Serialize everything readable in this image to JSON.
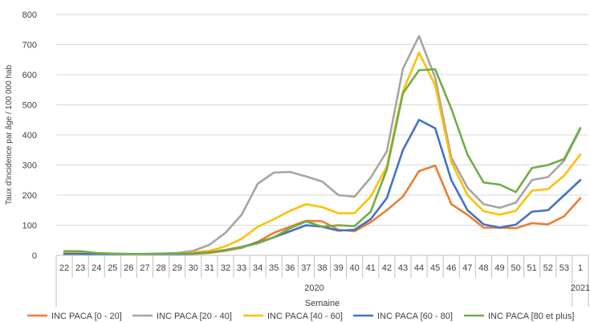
{
  "chart_data": {
    "type": "line",
    "xlabel": "Semaine",
    "ylabel": "Taux d'incidence  par âge / 100 000 hab",
    "ylim": [
      0,
      800
    ],
    "yticks": [
      "0",
      "100",
      "200",
      "300",
      "400",
      "500",
      "600",
      "700",
      "800"
    ],
    "grid": "horizontal",
    "legend_position": "bottom",
    "categories": [
      "22",
      "23",
      "24",
      "25",
      "26",
      "27",
      "28",
      "29",
      "30",
      "31",
      "32",
      "33",
      "34",
      "35",
      "36",
      "37",
      "38",
      "39",
      "40",
      "41",
      "42",
      "43",
      "44",
      "45",
      "46",
      "47",
      "48",
      "49",
      "50",
      "51",
      "52",
      "53",
      "1"
    ],
    "year_groups": [
      {
        "label": "2020",
        "from": 0,
        "to": 31
      },
      {
        "label": "2021",
        "from": 32,
        "to": 32
      }
    ],
    "series": [
      {
        "name": "INC PACA [0 - 20]",
        "color": "#ED7D31",
        "values": [
          5,
          5,
          4,
          3,
          3,
          3,
          4,
          4,
          5,
          8,
          15,
          25,
          45,
          75,
          95,
          115,
          113,
          85,
          80,
          110,
          150,
          195,
          280,
          298,
          170,
          135,
          92,
          92,
          90,
          107,
          103,
          130,
          190
        ]
      },
      {
        "name": "INC PACA [20 - 40]",
        "color": "#A5A5A5",
        "values": [
          8,
          8,
          6,
          4,
          4,
          4,
          6,
          8,
          15,
          35,
          75,
          135,
          238,
          275,
          277,
          262,
          245,
          200,
          195,
          258,
          345,
          620,
          728,
          590,
          325,
          225,
          170,
          158,
          175,
          250,
          260,
          315,
          420
        ]
      },
      {
        "name": "INC PACA [40 - 60]",
        "color": "#FFC000",
        "values": [
          7,
          7,
          5,
          4,
          3,
          4,
          6,
          5,
          10,
          15,
          30,
          55,
          95,
          120,
          148,
          170,
          160,
          140,
          140,
          195,
          295,
          545,
          673,
          565,
          310,
          200,
          147,
          135,
          148,
          215,
          220,
          265,
          335
        ]
      },
      {
        "name": "INC PACA [60 - 80]",
        "color": "#4472C4",
        "values": [
          5,
          5,
          4,
          3,
          3,
          3,
          4,
          4,
          6,
          10,
          18,
          28,
          42,
          60,
          80,
          100,
          95,
          82,
          85,
          120,
          190,
          350,
          450,
          422,
          250,
          150,
          103,
          92,
          102,
          145,
          150,
          200,
          250
        ]
      },
      {
        "name": "INC PACA [80 et plus]",
        "color": "#70AD47",
        "values": [
          14,
          14,
          8,
          6,
          5,
          5,
          6,
          6,
          7,
          10,
          17,
          27,
          40,
          60,
          90,
          113,
          95,
          100,
          97,
          145,
          285,
          538,
          615,
          618,
          487,
          335,
          242,
          235,
          210,
          290,
          300,
          320,
          423
        ]
      }
    ]
  }
}
